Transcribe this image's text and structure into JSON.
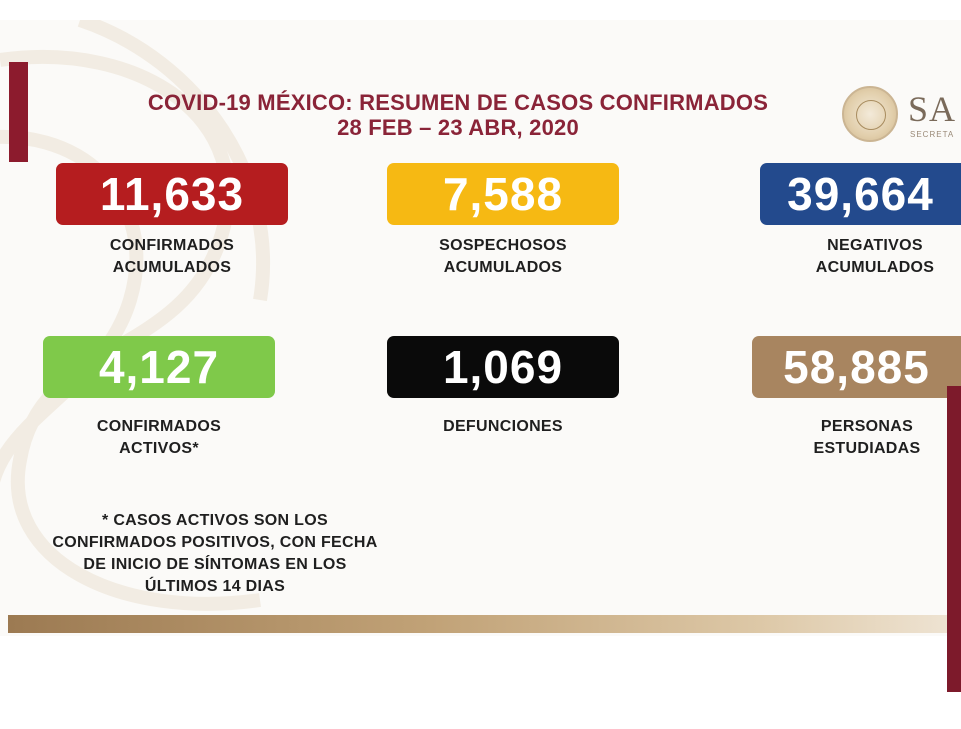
{
  "header": {
    "title_line1": "COVID-19 MÉXICO: RESUMEN DE CASOS CONFIRMADOS",
    "title_line2": "28 FEB – 23 ABR, 2020"
  },
  "logo": {
    "text": "SA",
    "subtext": "SECRETA"
  },
  "stats": [
    {
      "value": "11,633",
      "label_line1": "CONFIRMADOS",
      "label_line2": "ACUMULADOS",
      "color": "#b51d1f"
    },
    {
      "value": "7,588",
      "label_line1": "SOSPECHOSOS",
      "label_line2": "ACUMULADOS",
      "color": "#f6b913"
    },
    {
      "value": "39,664",
      "label_line1": "NEGATIVOS",
      "label_line2": "ACUMULADOS",
      "color": "#234a8d"
    },
    {
      "value": "4,127",
      "label_line1": "CONFIRMADOS",
      "label_line2": "ACTIVOS*",
      "color": "#7fc94a"
    },
    {
      "value": "1,069",
      "label_line1": "DEFUNCIONES",
      "label_line2": "",
      "color": "#0a0a0a"
    },
    {
      "value": "58,885",
      "label_line1": "PERSONAS",
      "label_line2": "ESTUDIADAS",
      "color": "#a88560"
    }
  ],
  "footnote": {
    "line1": "* CASOS ACTIVOS SON LOS",
    "line2": "CONFIRMADOS POSITIVOS, CON FECHA",
    "line3": "DE INICIO DE SÍNTOMAS EN LOS",
    "line4": "ÚLTIMOS 14 DIAS"
  }
}
